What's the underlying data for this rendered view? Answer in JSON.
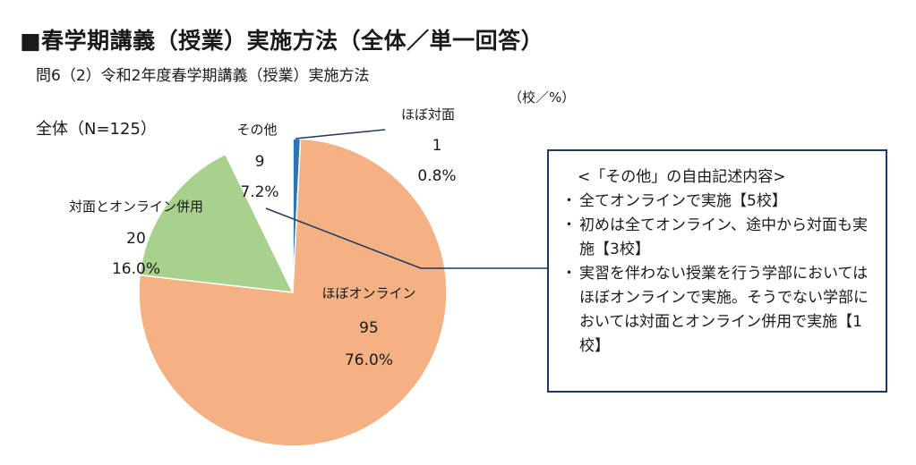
{
  "heading": "■春学期講義（授業）実施方法（全体／単一回答）",
  "question": "問6（2）令和2年度春学期講義（授業）実施方法",
  "unit_note": "（校／%）",
  "chart_data": {
    "type": "pie",
    "title": "全体（N=125）",
    "unit": "（校／%）",
    "slices": [
      {
        "label": "ほぼ対面",
        "count": 1,
        "percent_label": "0.8%",
        "value": 0.8,
        "color": "#2e75b6"
      },
      {
        "label": "ほぼオンライン",
        "count": 95,
        "percent_label": "76.0%",
        "value": 76.0,
        "color": "#f4b183"
      },
      {
        "label": "対面とオンライン併用",
        "count": 20,
        "percent_label": "16.0%",
        "value": 16.0,
        "color": "#a9d18e"
      },
      {
        "label": "その他",
        "count": 9,
        "percent_label": "7.2%",
        "value": 7.2,
        "color": "#ffffff"
      }
    ]
  },
  "note_box": {
    "title": "<「その他」の自由記述内容>",
    "items": [
      "全てオンラインで実施【5校】",
      "初めは全てオンライン、途中から対面も実施【3校】",
      "実習を伴わない授業を行う学部においてはほぼオンラインで実施。そうでない学部においては対面とオンライン併用で実施【1校】"
    ]
  }
}
